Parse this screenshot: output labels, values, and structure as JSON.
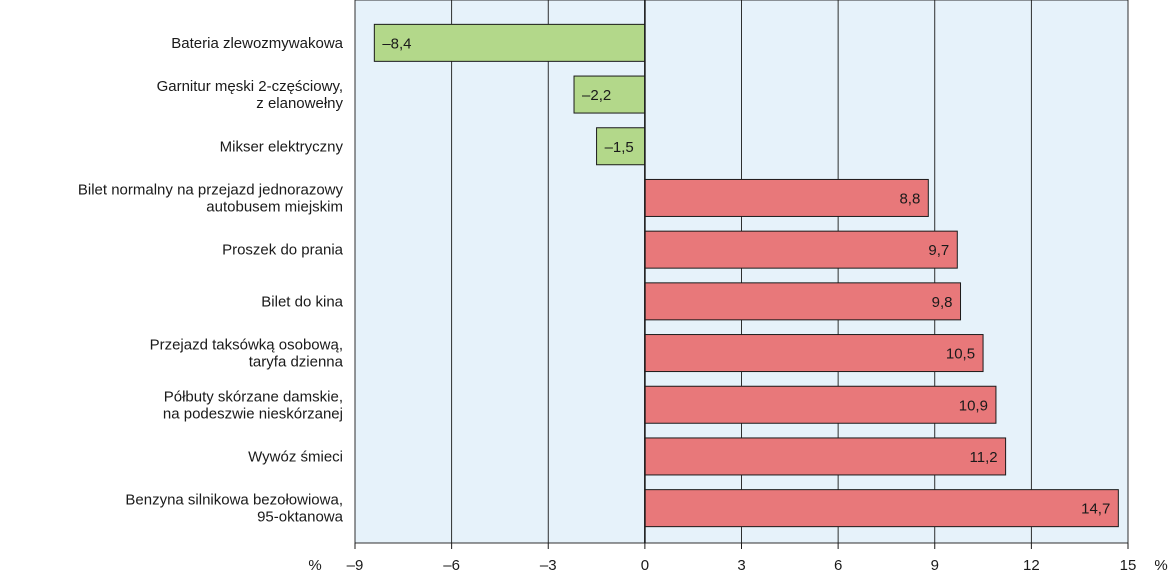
{
  "chart_data": {
    "type": "bar",
    "orientation": "horizontal",
    "categories": [
      [
        "Bateria zlewozmywakowa"
      ],
      [
        "Garnitur męski 2-częściowy,",
        "z elanowełny"
      ],
      [
        "Mikser elektryczny"
      ],
      [
        "Bilet normalny na przejazd jednorazowy",
        "autobusem miejskim"
      ],
      [
        "Proszek do prania"
      ],
      [
        "Bilet do kina"
      ],
      [
        "Przejazd taksówką osobową,",
        "taryfa dzienna"
      ],
      [
        "Półbuty skórzane damskie,",
        "na podeszwie nieskórzanej"
      ],
      [
        "Wywóz śmieci"
      ],
      [
        "Benzyna silnikowa bezołowiowa,",
        "95-oktanowa"
      ]
    ],
    "values": [
      -8.4,
      -2.2,
      -1.5,
      8.8,
      9.7,
      9.8,
      10.5,
      10.9,
      11.2,
      14.7
    ],
    "value_labels": [
      "–8,4",
      "–2,2",
      "–1,5",
      "8,8",
      "9,7",
      "9,8",
      "10,5",
      "10,9",
      "11,2",
      "14,7"
    ],
    "xlim": [
      -9,
      15
    ],
    "xticks": [
      -9,
      -6,
      -3,
      0,
      3,
      6,
      9,
      12,
      15
    ],
    "xtick_labels": [
      "–9",
      "–6",
      "–3",
      "0",
      "3",
      "6",
      "9",
      "12",
      "15"
    ],
    "unit_left": "%",
    "unit_right": "%",
    "grid": true,
    "colors": {
      "negative": "#b3d88a",
      "positive": "#e8787a",
      "plot_background": "#e6f2fa",
      "gridline": "#1a1a1a",
      "bar_outline": "#1a1a1a"
    }
  }
}
